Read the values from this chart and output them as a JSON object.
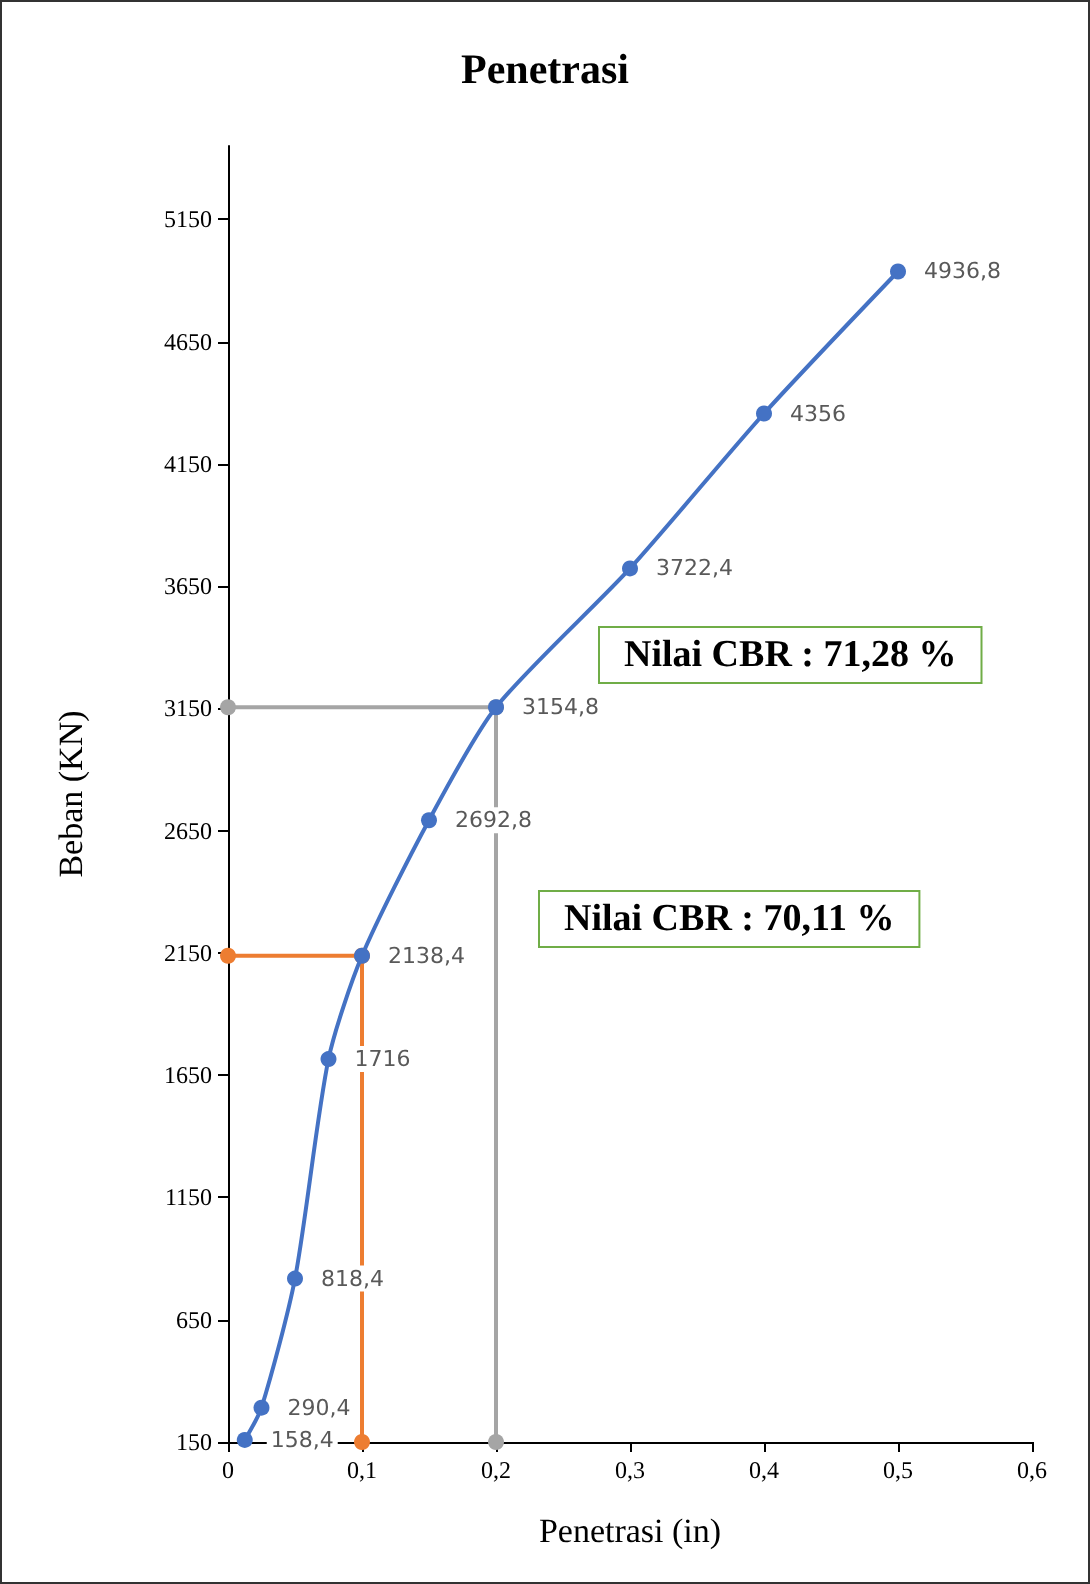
{
  "chart_data": {
    "type": "line",
    "title": "Penetrasi",
    "xlabel": "Penetrasi (in)",
    "ylabel": "Beban (KN)",
    "x": [
      0.0125,
      0.025,
      0.05,
      0.075,
      0.1,
      0.15,
      0.2,
      0.3,
      0.4,
      0.5
    ],
    "series": [
      {
        "color": "#4472c4",
        "marker": "circle",
        "values": [
          158.4,
          290.4,
          818.4,
          1716,
          2138.4,
          2692.8,
          3154.8,
          3722.4,
          4356,
          4936.8
        ],
        "value_labels": [
          "158,4",
          "290,4",
          "818,4",
          "1716",
          "2138,4",
          "2692,8",
          "3154,8",
          "3722,4",
          "4356",
          "4936,8"
        ]
      },
      {
        "type": "line",
        "color": "#a5a5a5",
        "marker": "circle",
        "x": [
          0,
          0.2,
          0.2
        ],
        "values": [
          3154.8,
          3154.8,
          150
        ]
      },
      {
        "type": "line",
        "color": "#ed7d31",
        "marker": "circle",
        "x": [
          0,
          0.1,
          0.1
        ],
        "values": [
          2138.4,
          2138.4,
          150
        ]
      }
    ],
    "xlim": [
      0,
      0.6
    ],
    "xticks": [
      0,
      {
        "value": 0.1,
        "label": "0,1"
      },
      {
        "value": 0.2,
        "label": "0,2"
      },
      {
        "value": 0.3,
        "label": "0,3"
      },
      {
        "value": 0.4,
        "label": "0,4"
      },
      {
        "value": 0.5,
        "label": "0,5"
      },
      {
        "value": 0.6,
        "label": "0,6"
      }
    ],
    "ylim": [
      150,
      5450
    ],
    "yticks": [
      150,
      650,
      1150,
      1650,
      2150,
      2650,
      3150,
      3650,
      4150,
      4650,
      5150
    ],
    "annotations": [
      "Nilai CBR : 71,28 %",
      "Nilai CBR : 70,11 %"
    ],
    "grid": false,
    "line_style": "solid"
  }
}
